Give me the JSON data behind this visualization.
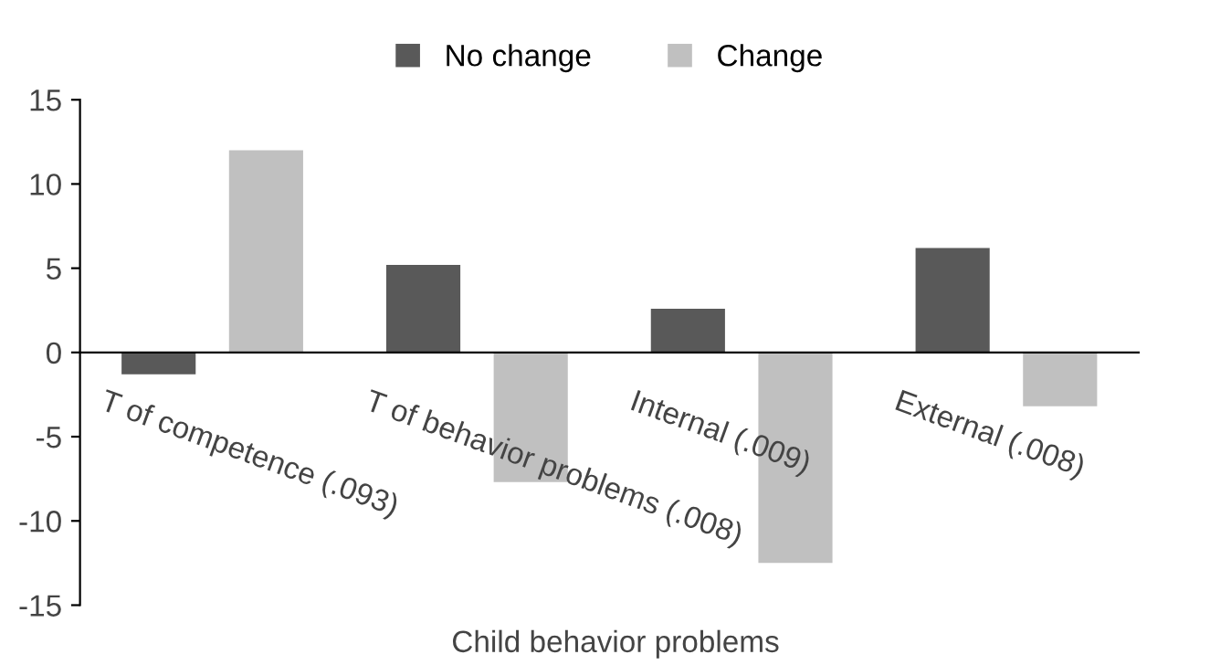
{
  "chart_data": {
    "type": "bar",
    "xlabel": "Child behavior problems",
    "categories": [
      "T of competence (.093)",
      "T of behavior problems (.008)",
      "Internal (.009)",
      "External (.008)"
    ],
    "series": [
      {
        "name": "No change",
        "color": "#595959",
        "values": [
          -1.3,
          5.2,
          2.6,
          6.2
        ]
      },
      {
        "name": "Change",
        "color": "#c0c0c0",
        "values": [
          12,
          -7.7,
          -12.5,
          -3.2
        ]
      }
    ],
    "ylim": [
      -15,
      15
    ],
    "yticks": [
      -15,
      -10,
      -5,
      0,
      5,
      10,
      15
    ],
    "grid": false,
    "legend": "top"
  }
}
